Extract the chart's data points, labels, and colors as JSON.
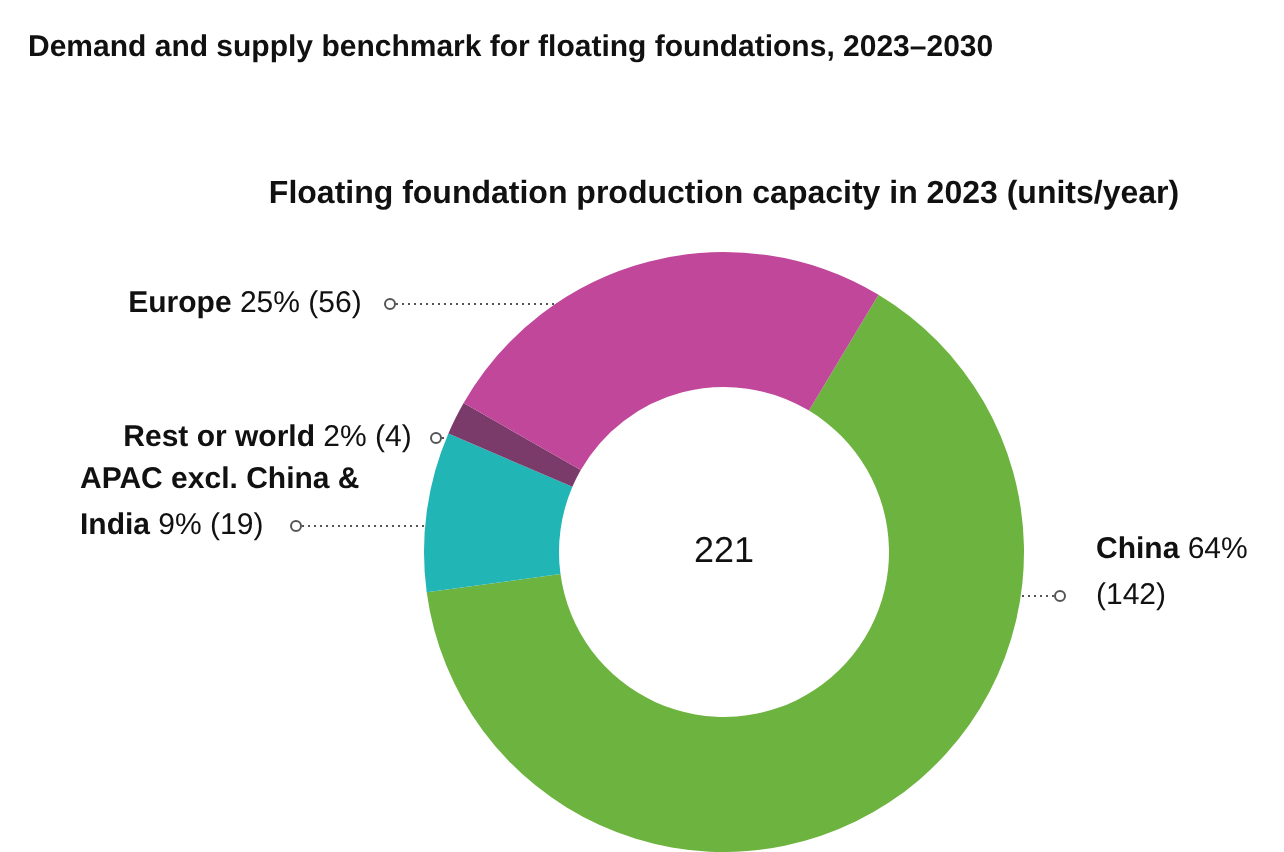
{
  "chart_data": {
    "type": "donut",
    "title": "Demand and supply benchmark for floating foundations, 2023–2030",
    "subtitle": "Floating foundation production capacity in 2023 (units/year)",
    "categories": [
      "China",
      "APAC excl. China & India",
      "Rest or world",
      "Europe"
    ],
    "values": [
      142,
      19,
      4,
      56
    ],
    "value_labels": [
      "64% (142)",
      "9% (19)",
      "2% (4)",
      "25% (56)"
    ],
    "colors": [
      "#6db33f",
      "#22b5b5",
      "#7a3a6a",
      "#c0479a"
    ],
    "annotations": [
      "221"
    ],
    "legend": false
  }
}
